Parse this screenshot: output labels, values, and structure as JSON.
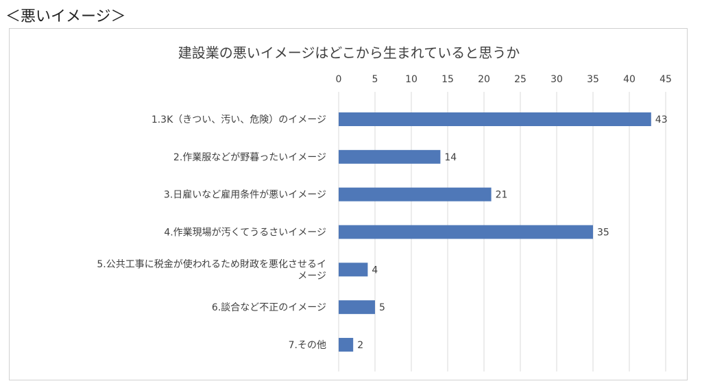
{
  "header": {
    "text": "＜悪いイメージ＞"
  },
  "colors": {
    "bar": "#4f78b8",
    "grid": "#d9d9d9",
    "text": "#404040",
    "border": "#d0d0d0"
  },
  "chart_data": {
    "type": "bar",
    "orientation": "horizontal",
    "title": "建設業の悪いイメージはどこから生まれていると思うか",
    "xlabel": "",
    "ylabel": "",
    "xlim": [
      0,
      45
    ],
    "ticks": [
      0,
      5,
      10,
      15,
      20,
      25,
      30,
      35,
      40,
      45
    ],
    "tick_position": "top",
    "grid": true,
    "legend": "none",
    "categories": [
      [
        "1.3K（きつい、汚い、危険）のイメージ"
      ],
      [
        "2.作業服などが野暮ったいイメージ"
      ],
      [
        "3.日雇いなど雇用条件が悪いイメージ"
      ],
      [
        "4.作業現場が汚くてうるさいイメージ"
      ],
      [
        "5.公共工事に税金が使われるため財政を悪化させるイ",
        "メージ"
      ],
      [
        "6.談合など不正のイメージ"
      ],
      [
        "7.その他"
      ]
    ],
    "values": [
      43,
      14,
      21,
      35,
      4,
      5,
      2
    ]
  }
}
